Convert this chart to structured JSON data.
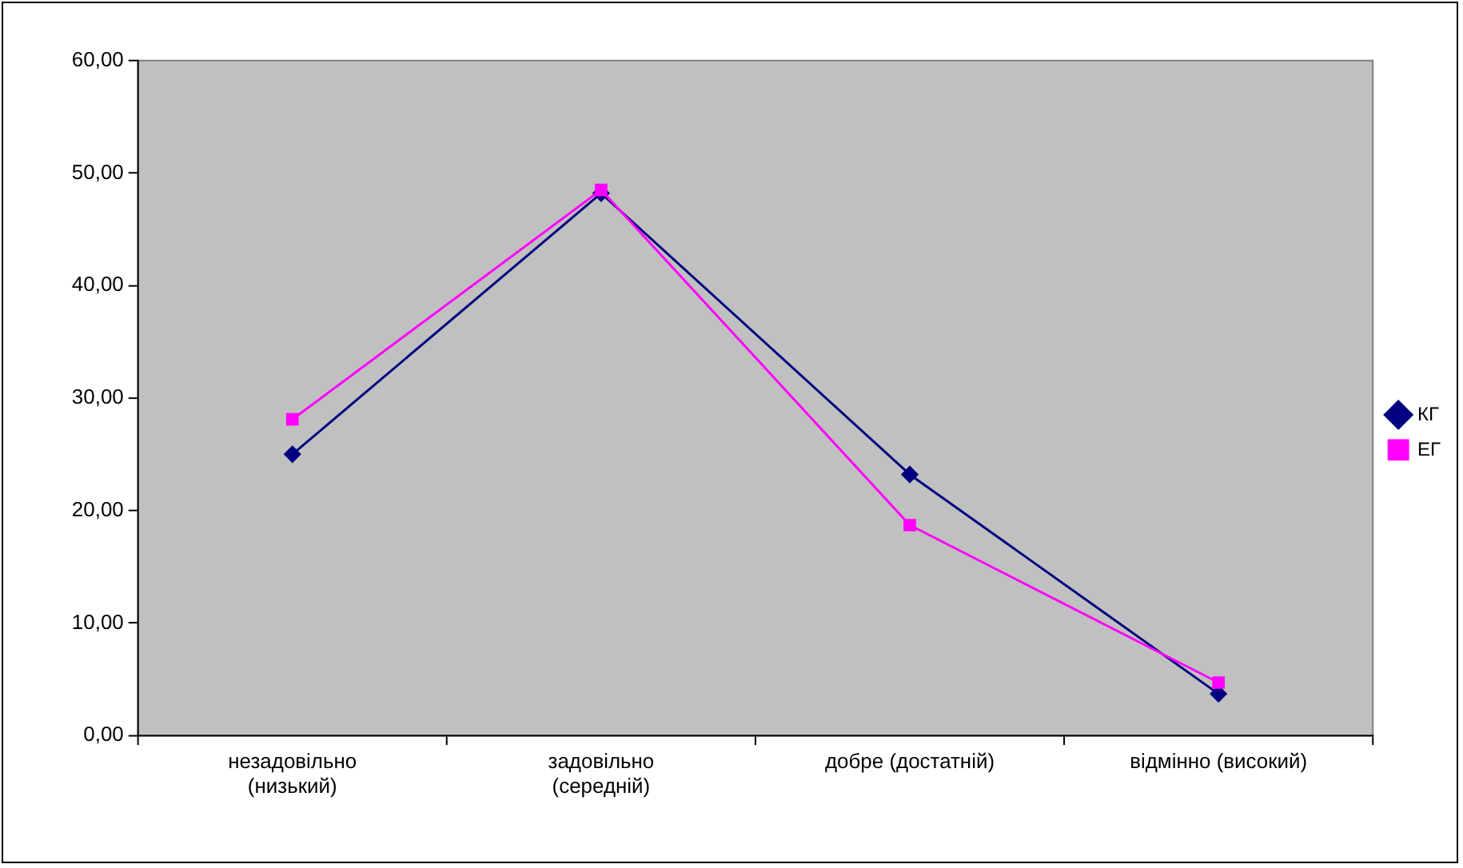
{
  "chart_data": {
    "type": "line",
    "categories": [
      "незадовільно (низький)",
      "задовільно (середній)",
      "добре (достатній)",
      "відмінно (високий)"
    ],
    "series": [
      {
        "name": "КГ",
        "color": "#000080",
        "marker": "diamond",
        "values": [
          25.0,
          48.2,
          23.2,
          3.7
        ]
      },
      {
        "name": "ЕГ",
        "color": "#ff00ff",
        "marker": "square",
        "values": [
          28.1,
          48.5,
          18.7,
          4.7
        ]
      }
    ],
    "ylim": [
      0,
      60
    ],
    "yticks": [
      {
        "value": 0,
        "label": "0,00"
      },
      {
        "value": 10,
        "label": "10,00"
      },
      {
        "value": 20,
        "label": "20,00"
      },
      {
        "value": 30,
        "label": "30,00"
      },
      {
        "value": 40,
        "label": "40,00"
      },
      {
        "value": 50,
        "label": "50,00"
      },
      {
        "value": 60,
        "label": "60,00"
      }
    ],
    "grid": false,
    "legend": "right",
    "line_style": "solid"
  }
}
